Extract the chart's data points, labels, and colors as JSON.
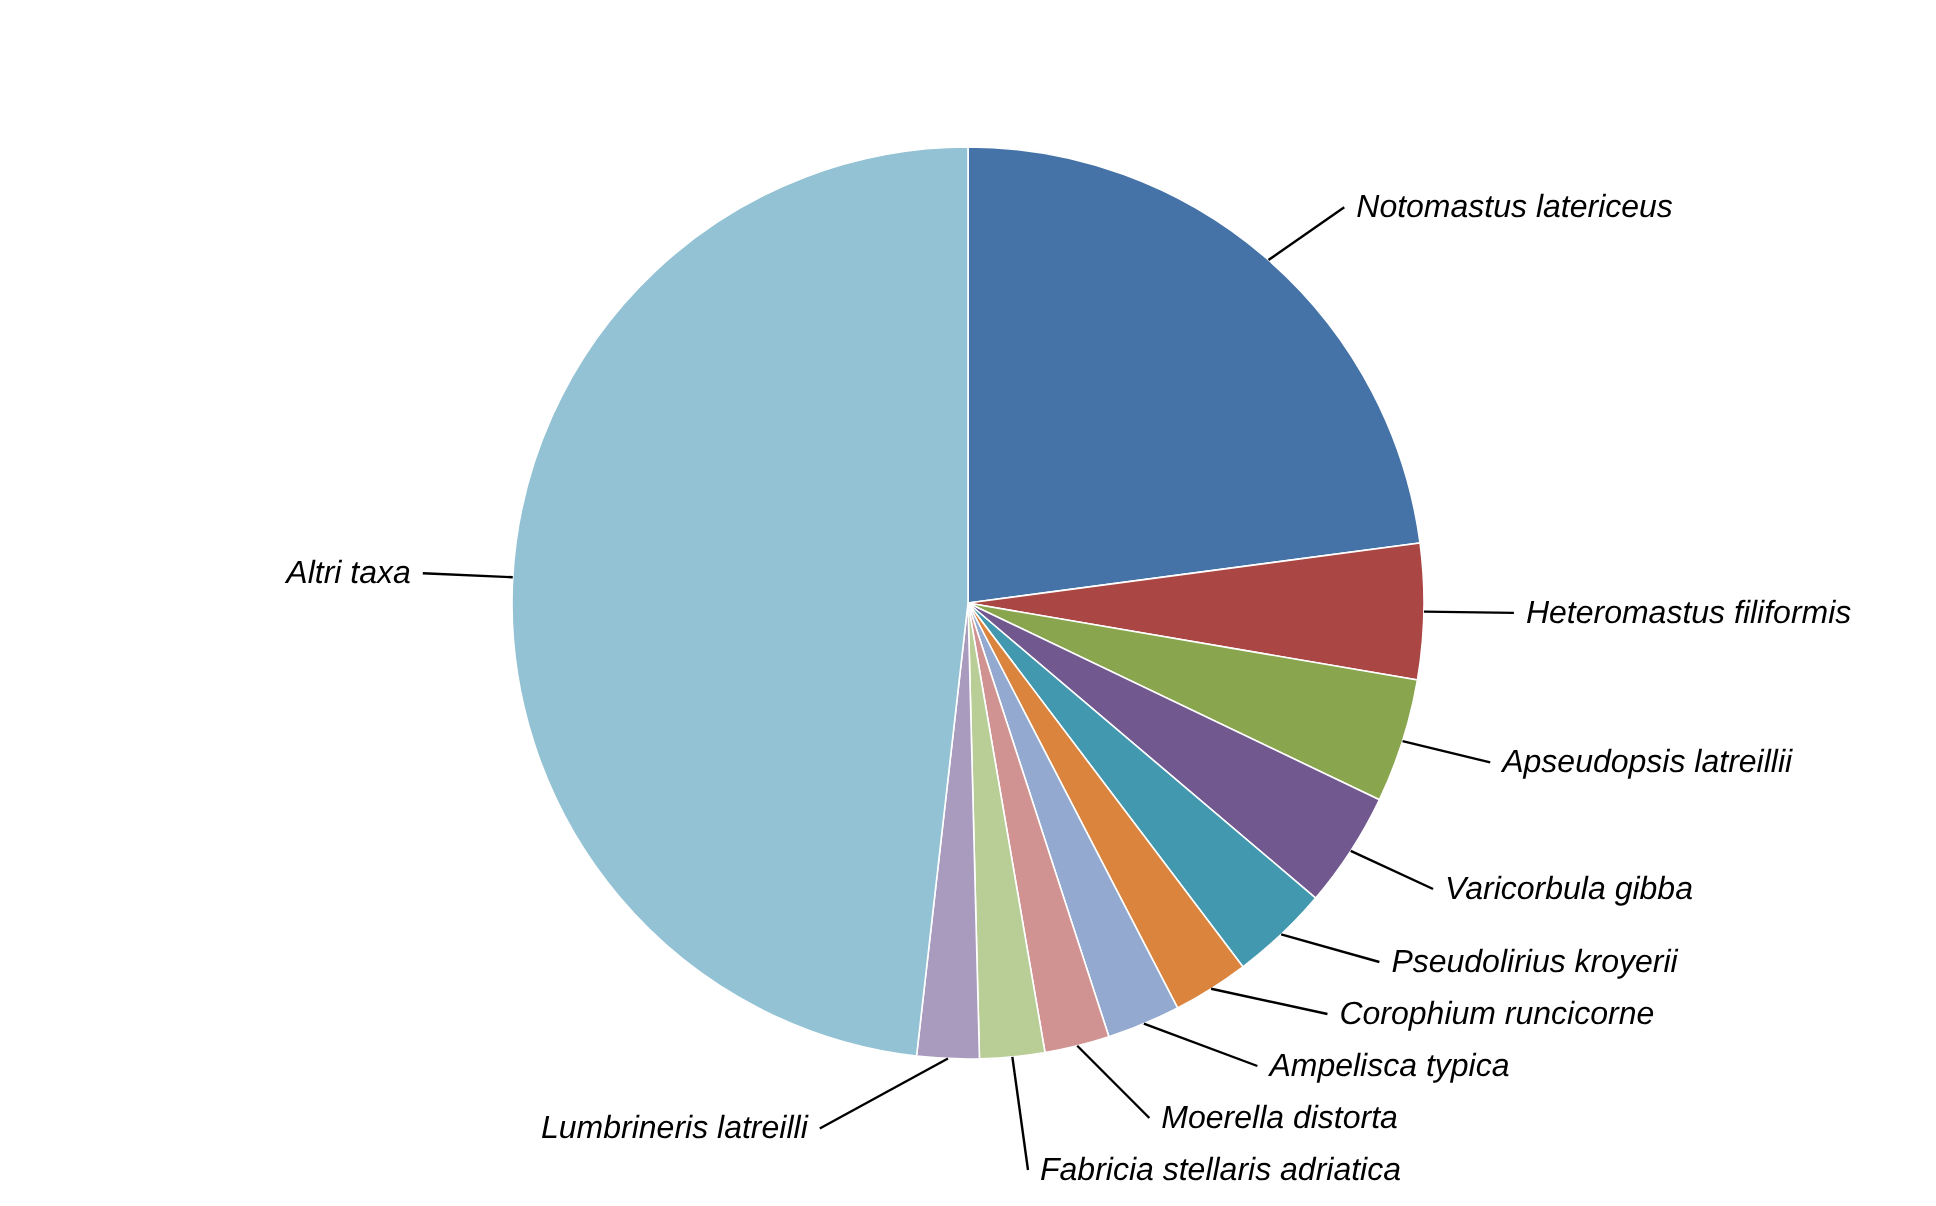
{
  "chart_data": {
    "type": "pie",
    "categories": [
      "Notomastus latericeus",
      "Heteromastus filiformis",
      "Apseudopsis latreillii",
      "Varicorbula gibba",
      "Pseudolirius kroyerii",
      "Corophium runcicorne",
      "Ampelisca typica",
      "Moerella distorta",
      "Fabricia stellaris adriatica",
      "Lumbrineris latreilli",
      "Altri taxa"
    ],
    "values": [
      22.9,
      4.8,
      4.4,
      4.1,
      3.5,
      2.7,
      2.6,
      2.3,
      2.3,
      2.2,
      48.2
    ],
    "colors": [
      "#4572a7",
      "#aa4643",
      "#89a54e",
      "#71588f",
      "#4198af",
      "#db843d",
      "#93a9cf",
      "#d19392",
      "#b9cd96",
      "#a99bbd",
      "#93c2d4"
    ]
  }
}
